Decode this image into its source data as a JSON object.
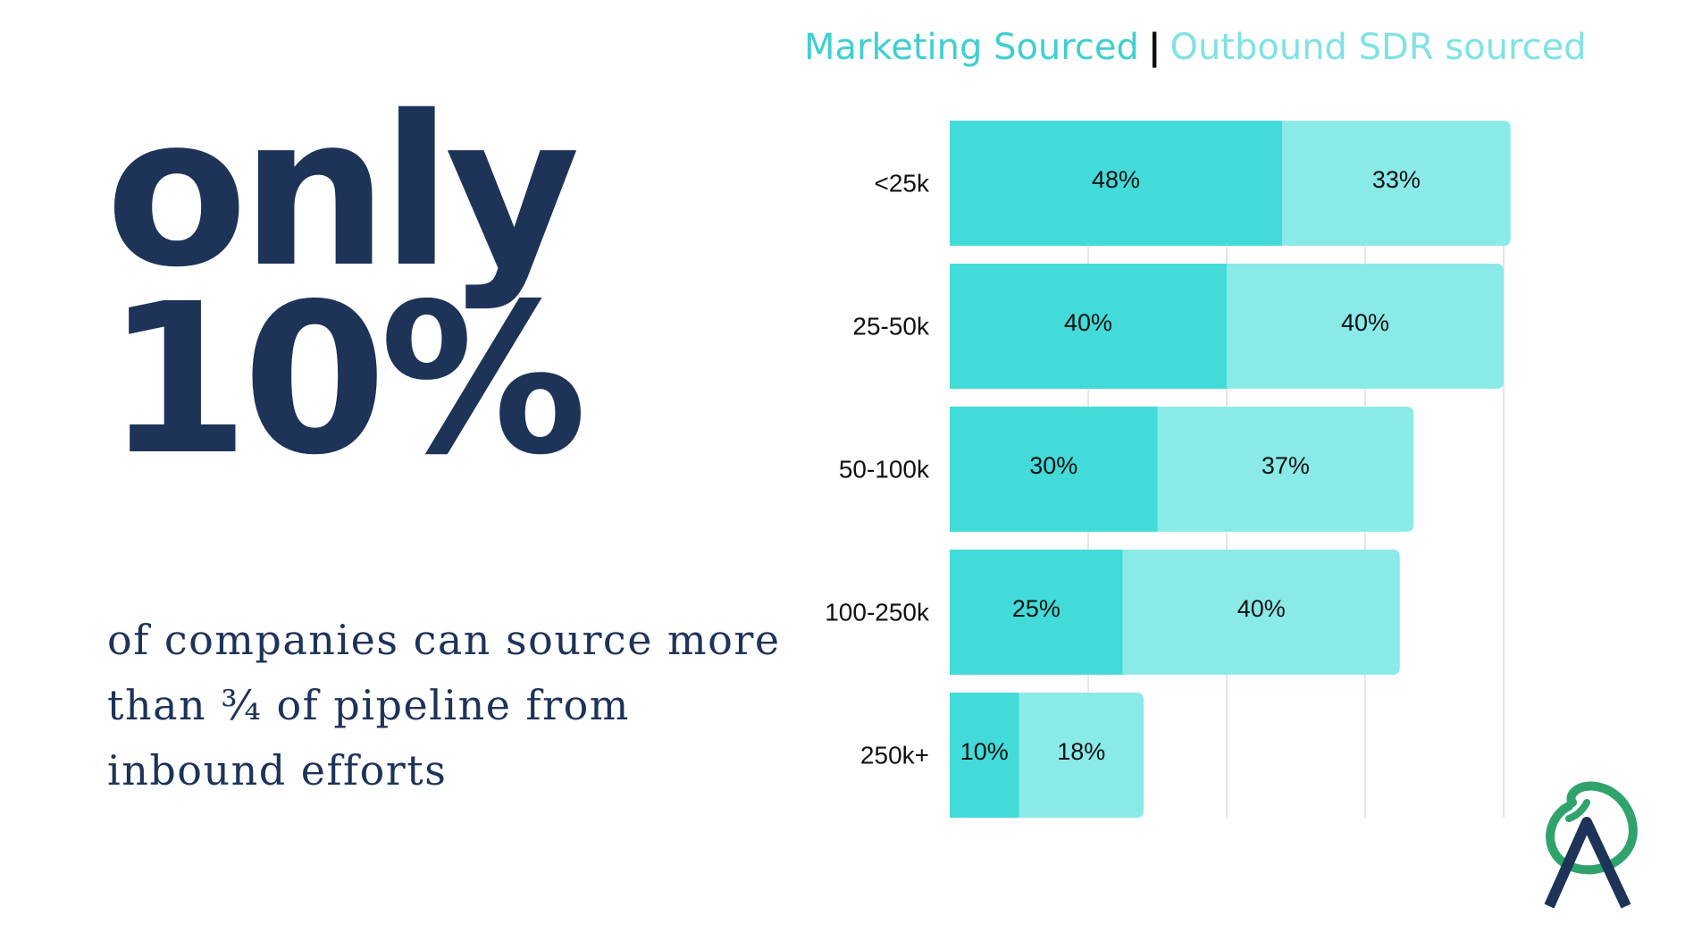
{
  "headline": {
    "word": "only",
    "figure": "10%"
  },
  "subtext": {
    "lines": [
      "of companies can source more",
      "than ¾ of pipeline from",
      "inbound efforts"
    ]
  },
  "legend": {
    "series_a": "Marketing Sourced",
    "separator": "|",
    "series_b": "Outbound SDR sourced"
  },
  "colors": {
    "headline": "#1d3358",
    "marketing": "#42dbd9",
    "outbound": "#8aeae8",
    "logo_green": "#2fa36b",
    "logo_navy": "#1d3358"
  },
  "chart_data": {
    "type": "bar",
    "orientation": "horizontal",
    "stacked": true,
    "categories": [
      "<25k",
      "25-50k",
      "50-100k",
      "100-250k",
      "250k+"
    ],
    "series": [
      {
        "name": "Marketing Sourced",
        "values": [
          48,
          40,
          30,
          25,
          10
        ],
        "labels": [
          "48%",
          "40%",
          "30%",
          "25%",
          "10%"
        ]
      },
      {
        "name": "Outbound SDR sourced",
        "values": [
          33,
          40,
          37,
          40,
          18
        ],
        "labels": [
          "33%",
          "40%",
          "37%",
          "40%",
          "18%"
        ]
      }
    ],
    "xlim": [
      0,
      100
    ],
    "grid": true,
    "legend_position": "top"
  }
}
